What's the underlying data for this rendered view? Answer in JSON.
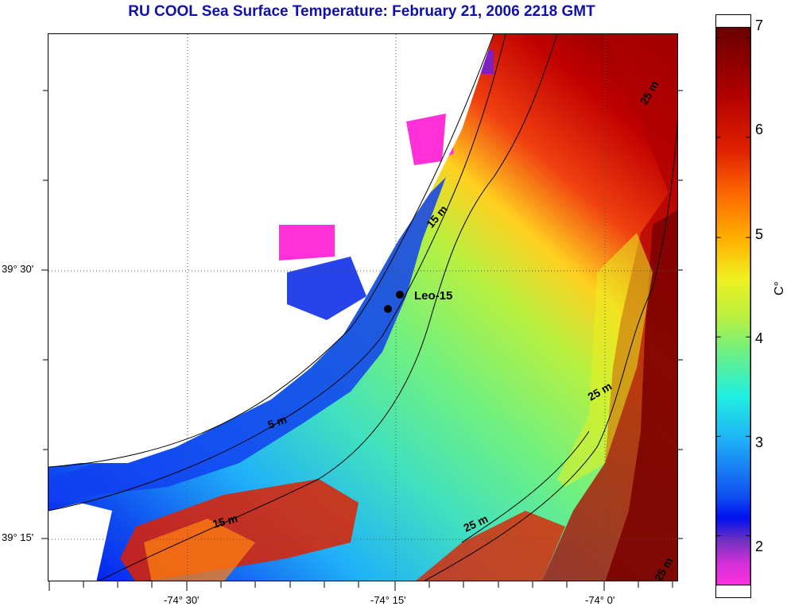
{
  "title": "RU COOL  Sea Surface Temperature:  February 21, 2006 2218 GMT",
  "map": {
    "longitude_labels": [
      "-74° 30'",
      "-74° 15'",
      "-74° 0'"
    ],
    "latitude_labels": [
      "39° 30'",
      "39° 15'"
    ],
    "station_label": "Leo-15",
    "depth_contour_labels": [
      "25 m",
      "15 m",
      "5 m",
      "25 m",
      "15 m",
      "25 m",
      "25 m"
    ]
  },
  "colorbar": {
    "ticks": [
      "7",
      "6",
      "5",
      "4",
      "3",
      "2"
    ],
    "unit": "C°",
    "range": [
      1.5,
      7.1
    ]
  },
  "colors": {
    "title": "#1010a8",
    "land": "#ffffff",
    "cold": "#ff30e0",
    "warm": "#800000"
  }
}
